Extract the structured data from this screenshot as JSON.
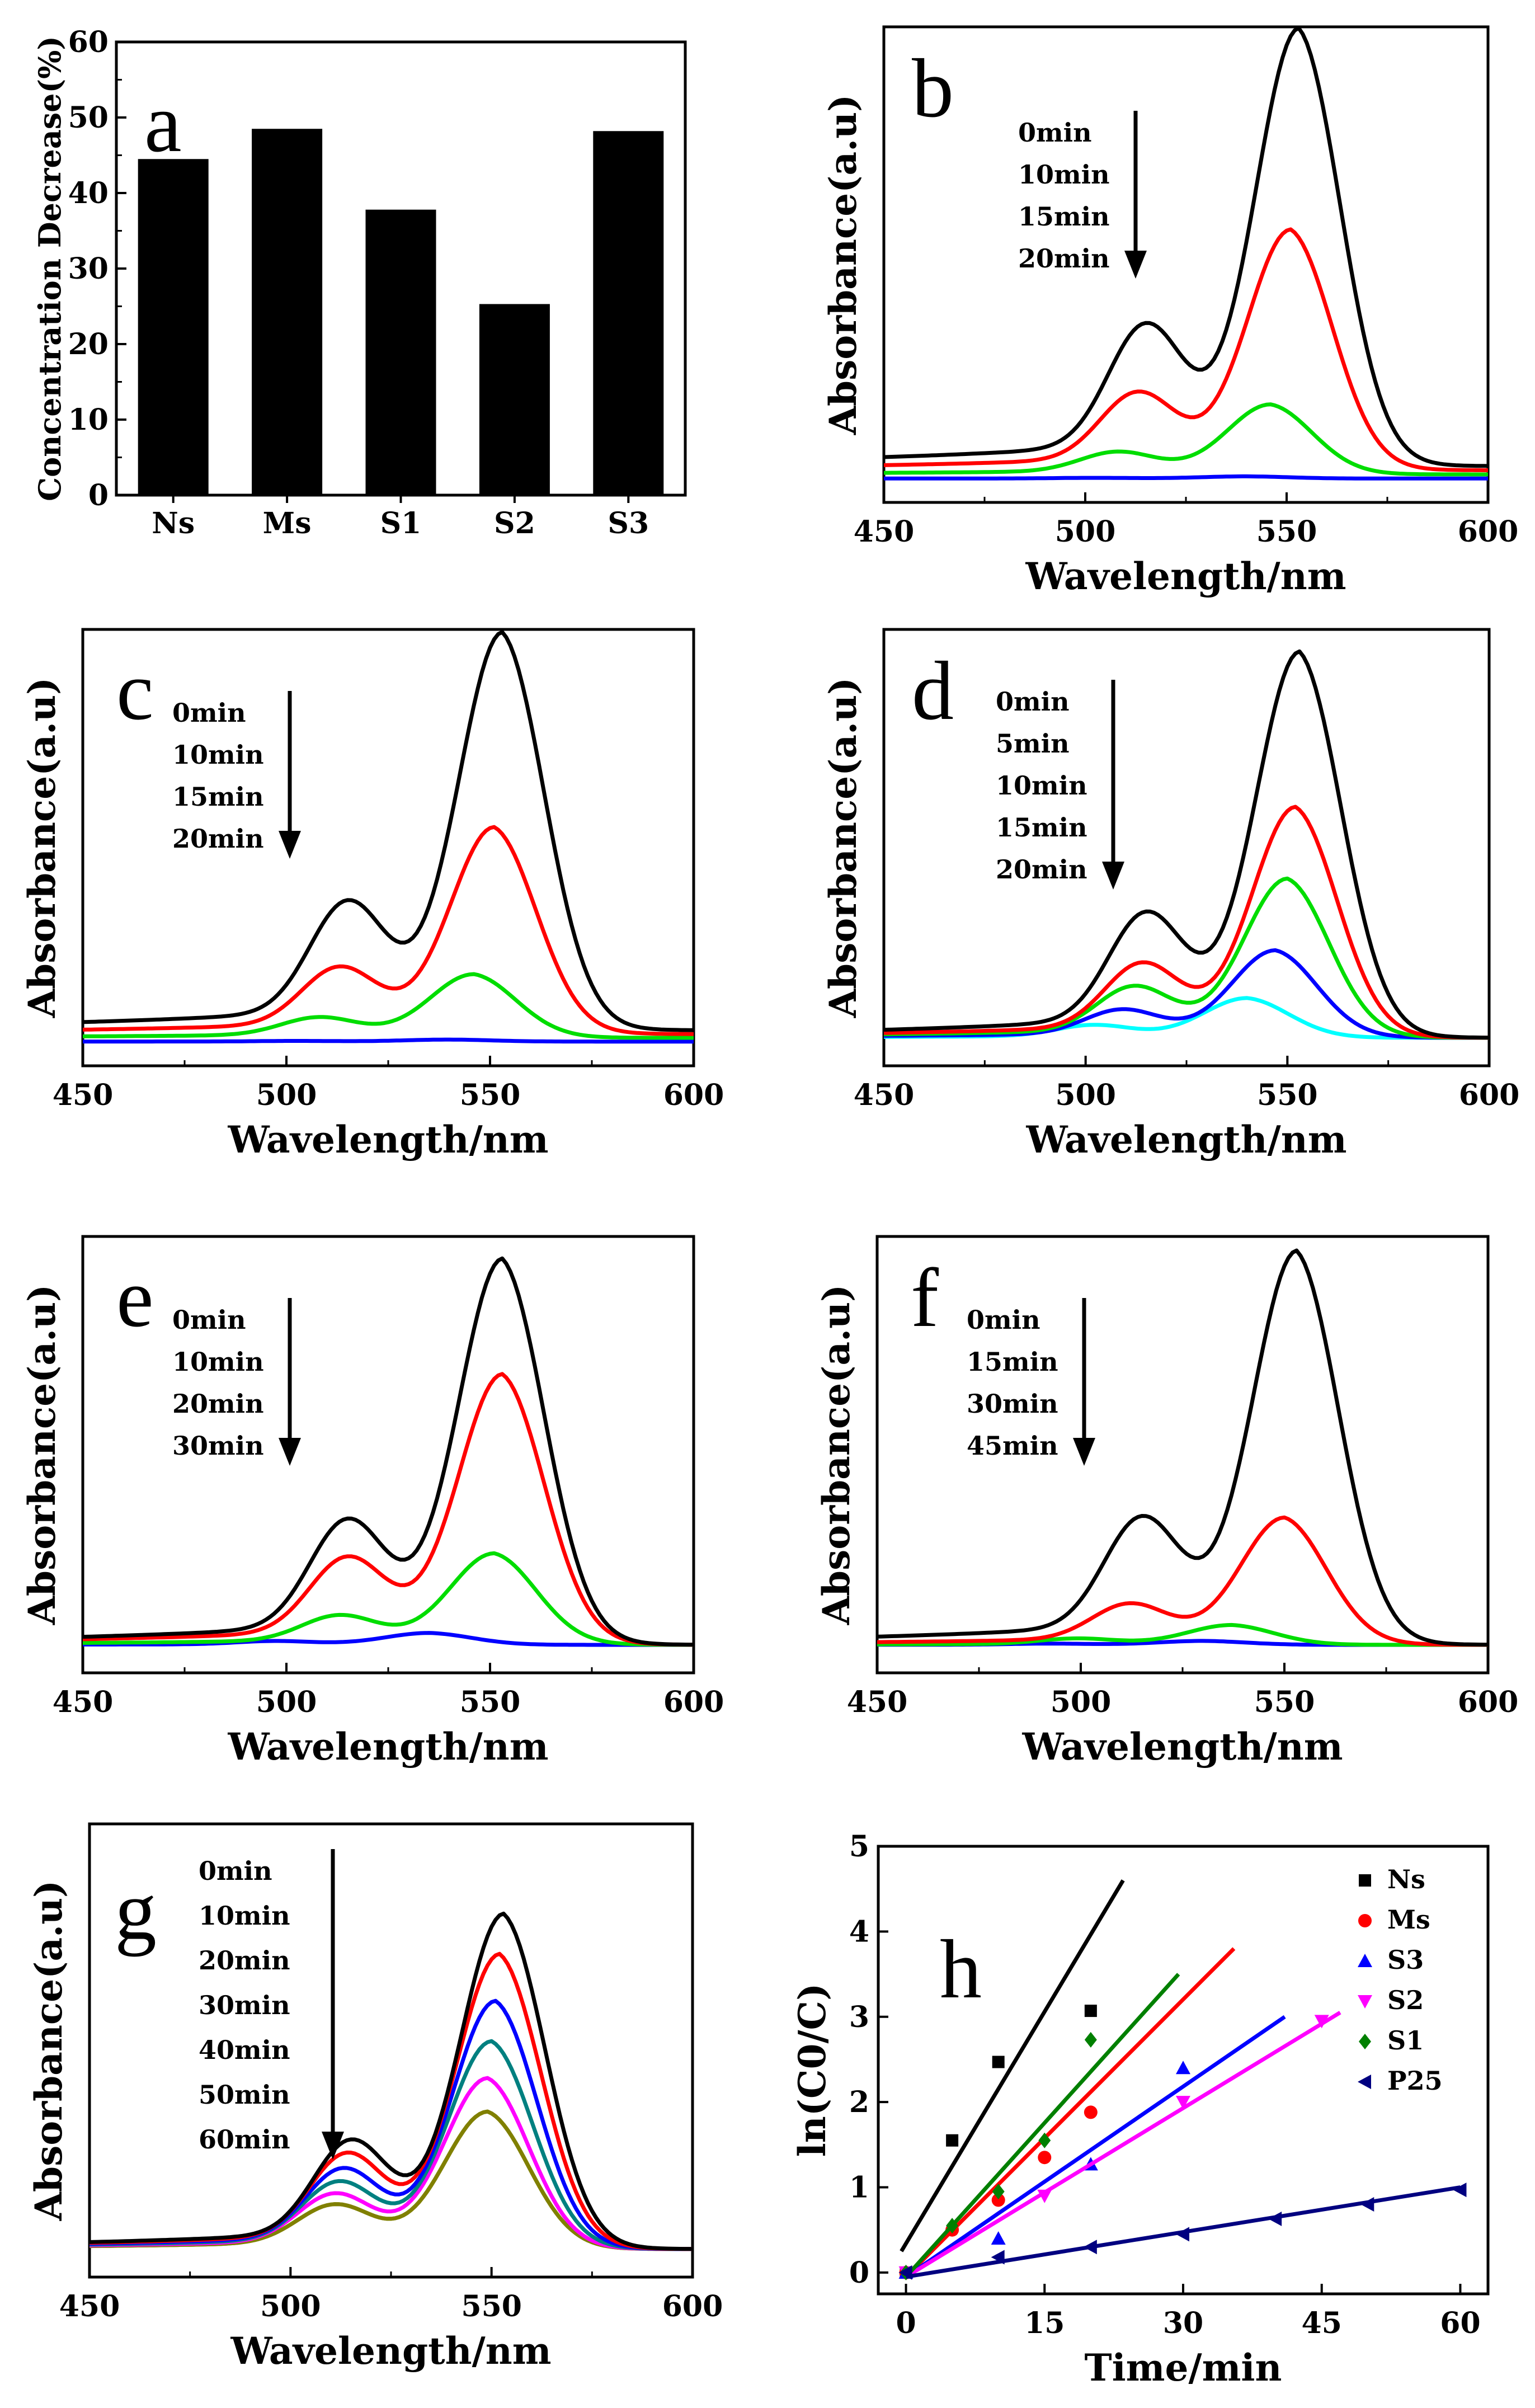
{
  "chart_data": [
    {
      "id": "a",
      "type": "bar",
      "panel_label": "a",
      "ylabel": "Concentration Decrease(%)",
      "xlabel": "",
      "ylim": [
        0,
        60
      ],
      "yticks": [
        0,
        10,
        20,
        30,
        40,
        50,
        60
      ],
      "categories": [
        "Ns",
        "Ms",
        "S1",
        "S2",
        "S3"
      ],
      "values": [
        44.5,
        48.5,
        37.8,
        25.3,
        48.2
      ]
    },
    {
      "id": "b",
      "type": "line",
      "panel_label": "b",
      "xlabel": "Wavelength/nm",
      "ylabel": "Absorbance(a.u)",
      "xlim": [
        450,
        600
      ],
      "xticks": [
        450,
        500,
        550,
        600
      ],
      "ylim": [
        0,
        1.05
      ],
      "legend": [
        "0min",
        "10min",
        "15min",
        "20min"
      ],
      "colors": [
        "#000000",
        "#ff0000",
        "#00dd00",
        "#0000ff"
      ],
      "peaks": [
        553,
        551,
        546,
        540
      ],
      "heights": [
        1.0,
        0.55,
        0.16,
        0.005
      ],
      "base": [
        0.02,
        0.01,
        0.0,
        -0.01
      ]
    },
    {
      "id": "c",
      "type": "line",
      "panel_label": "c",
      "xlabel": "Wavelength/nm",
      "ylabel": "Absorbance(a.u)",
      "xlim": [
        450,
        600
      ],
      "xticks": [
        450,
        500,
        550,
        600
      ],
      "ylim": [
        0,
        1.05
      ],
      "legend": [
        "0min",
        "10min",
        "15min",
        "20min"
      ],
      "colors": [
        "#000000",
        "#ff0000",
        "#00dd00",
        "#0000ff"
      ],
      "peaks": [
        553,
        551,
        546,
        540
      ],
      "heights": [
        1.0,
        0.52,
        0.16,
        0.005
      ],
      "base": [
        0.02,
        0.01,
        0.0,
        -0.01
      ]
    },
    {
      "id": "d",
      "type": "line",
      "panel_label": "d",
      "xlabel": "Wavelength/nm",
      "ylabel": "Absorbance(a.u)",
      "xlim": [
        450,
        600
      ],
      "xticks": [
        450,
        500,
        550,
        600
      ],
      "ylim": [
        0,
        1.05
      ],
      "legend": [
        "0min",
        "5min",
        "10min",
        "15min",
        "20min"
      ],
      "colors": [
        "#000000",
        "#ff0000",
        "#00dd00",
        "#0000ff",
        "#00ffff"
      ],
      "peaks": [
        553,
        552,
        550,
        547,
        540
      ],
      "heights": [
        0.97,
        0.58,
        0.4,
        0.22,
        0.1
      ],
      "base": [
        0.0,
        0.0,
        0.0,
        0.0,
        0.0
      ]
    },
    {
      "id": "e",
      "type": "line",
      "panel_label": "e",
      "xlabel": "Wavelength/nm",
      "ylabel": "Absorbance(a.u)",
      "xlim": [
        450,
        600
      ],
      "xticks": [
        450,
        500,
        550,
        600
      ],
      "ylim": [
        0,
        1.05
      ],
      "legend": [
        "0min",
        "10min",
        "20min",
        "30min"
      ],
      "colors": [
        "#000000",
        "#ff0000",
        "#00dd00",
        "#0000ff"
      ],
      "peaks": [
        553,
        553,
        551,
        535
      ],
      "heights": [
        0.97,
        0.68,
        0.23,
        0.03
      ],
      "base": [
        0.0,
        0.0,
        0.0,
        0.0
      ]
    },
    {
      "id": "f",
      "type": "line",
      "panel_label": "f",
      "xlabel": "Wavelength/nm",
      "ylabel": "Absorbance(a.u)",
      "xlim": [
        450,
        600
      ],
      "xticks": [
        450,
        500,
        550,
        600
      ],
      "ylim": [
        0,
        1.05
      ],
      "legend": [
        "0min",
        "15min",
        "30min",
        "45min"
      ],
      "colors": [
        "#000000",
        "#ff0000",
        "#00dd00",
        "#0000ff"
      ],
      "peaks": [
        553,
        550,
        537,
        530
      ],
      "heights": [
        0.99,
        0.32,
        0.05,
        0.01
      ],
      "base": [
        0.0,
        0.0,
        0.0,
        0.0
      ]
    },
    {
      "id": "g",
      "type": "line",
      "panel_label": "g",
      "xlabel": "Wavelength/nm",
      "ylabel": "Absorbance(a.u)",
      "xlim": [
        450,
        600
      ],
      "xticks": [
        450,
        500,
        550,
        600
      ],
      "ylim": [
        0,
        1.3
      ],
      "legend": [
        "0min",
        "10min",
        "20min",
        "30min",
        "40min",
        "50min",
        "60min"
      ],
      "colors": [
        "#000000",
        "#ff0000",
        "#0000ff",
        "#008080",
        "#ff00ff",
        "#808000",
        "#808000"
      ],
      "peaks": [
        553,
        552,
        551,
        550,
        549,
        549,
        549
      ],
      "heights": [
        1.0,
        0.88,
        0.74,
        0.62,
        0.51,
        0.41,
        0.41
      ],
      "base": [
        0.0,
        0.0,
        0.0,
        0.0,
        0.0,
        0.0,
        0.0
      ]
    },
    {
      "id": "h",
      "type": "scatter",
      "panel_label": "h",
      "xlabel": "Time/min",
      "ylabel": "ln(C0/C)",
      "xlim": [
        -3,
        63
      ],
      "ylim": [
        -0.25,
        5.0
      ],
      "xticks": [
        0,
        15,
        30,
        45,
        60
      ],
      "yticks": [
        0,
        1,
        2,
        3,
        4,
        5
      ],
      "series": [
        {
          "name": "Ns",
          "color": "#000000",
          "marker": "square",
          "x": [
            0,
            5,
            10,
            20
          ],
          "y": [
            0,
            1.55,
            2.47,
            3.07
          ],
          "fit": [
            [
              -0.5,
              0.25
            ],
            [
              23.5,
              4.6
            ]
          ]
        },
        {
          "name": "Ms",
          "color": "#ff0000",
          "marker": "circle",
          "x": [
            0,
            5,
            10,
            15,
            20
          ],
          "y": [
            0,
            0.5,
            0.85,
            1.35,
            1.88
          ],
          "fit": [
            [
              0,
              -0.05
            ],
            [
              35.5,
              3.8
            ]
          ]
        },
        {
          "name": "S3",
          "color": "#0000ff",
          "marker": "triangle-up",
          "x": [
            0,
            10,
            20,
            30
          ],
          "y": [
            0,
            0.4,
            1.27,
            2.4
          ],
          "fit": [
            [
              0,
              -0.05
            ],
            [
              41,
              3.0
            ]
          ]
        },
        {
          "name": "S2",
          "color": "#ff00ff",
          "marker": "triangle-down",
          "x": [
            0,
            15,
            30,
            45
          ],
          "y": [
            0,
            0.9,
            2.0,
            2.95
          ],
          "fit": [
            [
              0,
              -0.05
            ],
            [
              47,
              3.05
            ]
          ]
        },
        {
          "name": "S1",
          "color": "#008000",
          "marker": "diamond",
          "x": [
            0,
            5,
            10,
            15,
            20
          ],
          "y": [
            0,
            0.55,
            0.95,
            1.55,
            2.73
          ],
          "fit": [
            [
              0,
              -0.05
            ],
            [
              29.5,
              3.5
            ]
          ]
        },
        {
          "name": "P25",
          "color": "#000080",
          "marker": "triangle-left",
          "x": [
            0,
            10,
            20,
            30,
            40,
            50,
            60
          ],
          "y": [
            0,
            0.18,
            0.3,
            0.45,
            0.63,
            0.8,
            0.97
          ],
          "fit": [
            [
              0,
              -0.05
            ],
            [
              60,
              1.0
            ]
          ]
        }
      ]
    }
  ]
}
